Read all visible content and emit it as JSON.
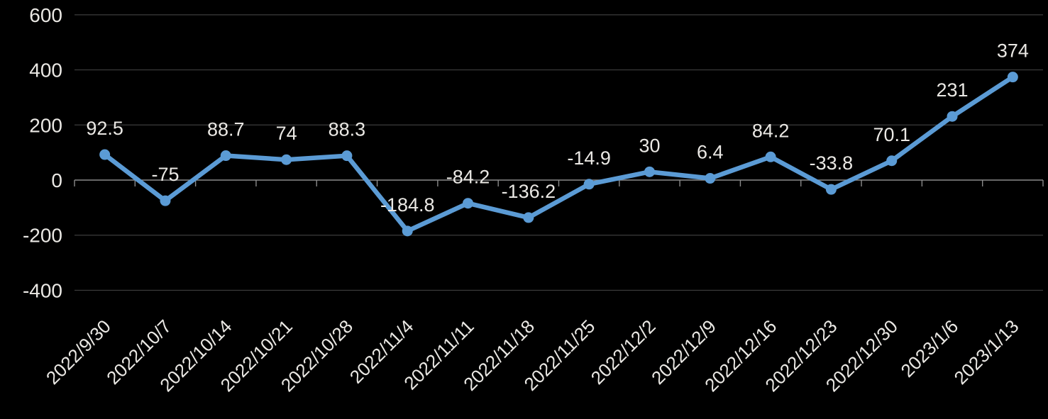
{
  "chart_data": {
    "type": "line",
    "title": "",
    "xlabel": "",
    "ylabel": "",
    "legend": "none",
    "grid": true,
    "ylim": [
      -400,
      600
    ],
    "categories": [
      "2022/9/30",
      "2022/10/7",
      "2022/10/14",
      "2022/10/21",
      "2022/10/28",
      "2022/11/4",
      "2022/11/11",
      "2022/11/18",
      "2022/11/25",
      "2022/12/2",
      "2022/12/9",
      "2022/12/16",
      "2022/12/23",
      "2022/12/30",
      "2023/1/6",
      "2023/1/13"
    ],
    "values": [
      92.5,
      -75,
      88.7,
      74,
      88.3,
      -184.8,
      -84.2,
      -136.2,
      -14.9,
      30,
      6.4,
      84.2,
      -33.8,
      70.1,
      231,
      374
    ],
    "point_labels": [
      "92.5",
      "-75",
      "88.7",
      "74",
      "88.3",
      "-184.8",
      "-84.2",
      "-136.2",
      "-14.9",
      "30",
      "6.4",
      "84.2",
      "-33.8",
      "70.1",
      "231",
      "374"
    ],
    "yticks": [
      {
        "value": 600,
        "label": "600"
      },
      {
        "value": 400,
        "label": "400"
      },
      {
        "value": 200,
        "label": "200"
      },
      {
        "value": 0,
        "label": "0"
      },
      {
        "value": -200,
        "label": "-200"
      },
      {
        "value": -400,
        "label": "-400"
      }
    ],
    "colors": {
      "background": "#000000",
      "series": "#5b9bd5",
      "gridline": "#3d3d3d",
      "axis": "#8a8a8a",
      "text": "#eae8e4"
    }
  }
}
